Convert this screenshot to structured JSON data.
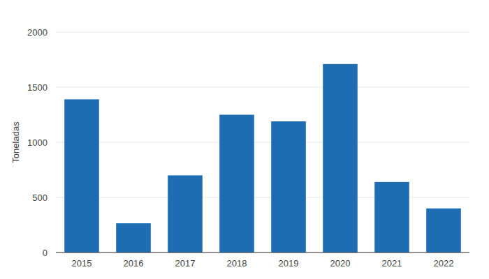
{
  "chart_data": {
    "type": "bar",
    "y_label": "Toneladas",
    "categories": [
      "2015",
      "2016",
      "2017",
      "2018",
      "2019",
      "2020",
      "2021",
      "2022"
    ],
    "values": [
      1390,
      265,
      700,
      1250,
      1190,
      1710,
      640,
      400
    ],
    "color": "#1e6db3",
    "ylim": [
      0,
      2000
    ],
    "yticks": [
      0,
      500,
      1000,
      1500,
      2000
    ],
    "grid": true
  }
}
